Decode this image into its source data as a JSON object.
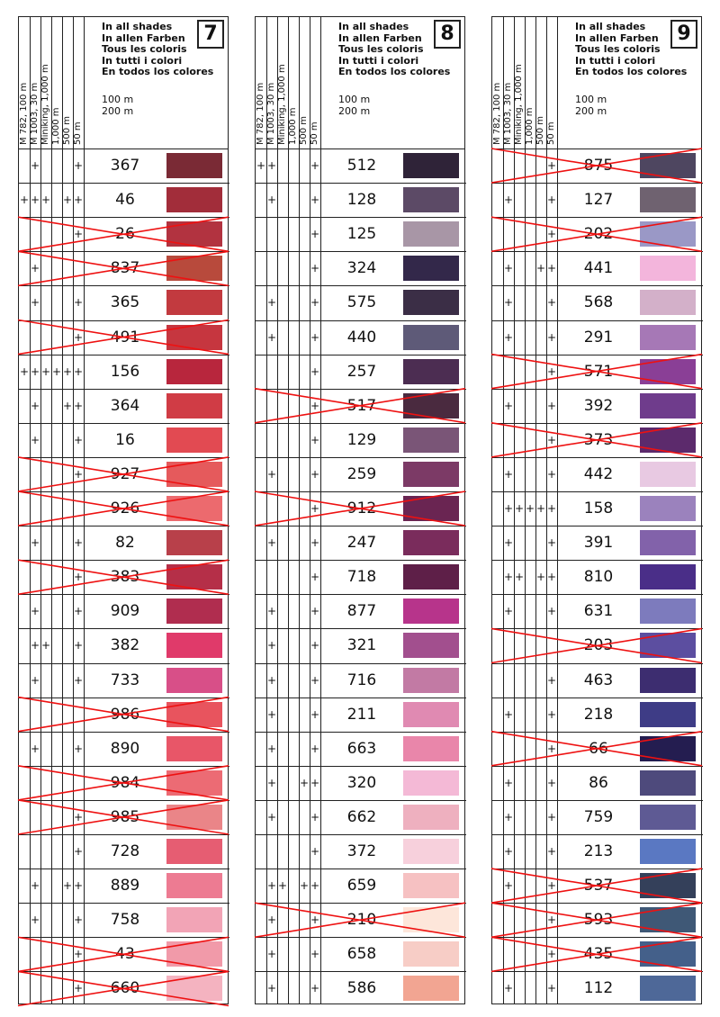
{
  "header": {
    "columns": [
      "M 782, 100 m",
      "M 1003, 30 m",
      "Miniking, 1,000 m",
      "1,000 m",
      "500 m",
      "50 m"
    ],
    "titles": [
      "In all shades",
      "In allen Farben",
      "Tous les coloris",
      "In tutti i colori",
      "En todos los colores"
    ],
    "lengths": [
      "100 m",
      "200 m"
    ]
  },
  "colors": {
    "cross": "#e11",
    "line": "#222"
  },
  "panels": [
    {
      "number": "7",
      "rows": [
        {
          "code": "367",
          "marks": [
            0,
            1,
            0,
            0,
            0,
            1
          ],
          "crossed": false,
          "color": "#7a2a35"
        },
        {
          "code": "46",
          "marks": [
            1,
            1,
            1,
            0,
            1,
            1
          ],
          "crossed": false,
          "color": "#a22d3a"
        },
        {
          "code": "26",
          "marks": [
            0,
            0,
            0,
            0,
            0,
            1
          ],
          "crossed": true,
          "color": "#b23340"
        },
        {
          "code": "837",
          "marks": [
            0,
            1,
            0,
            0,
            0,
            0
          ],
          "crossed": true,
          "color": "#b84a3c"
        },
        {
          "code": "365",
          "marks": [
            0,
            1,
            0,
            0,
            0,
            1
          ],
          "crossed": false,
          "color": "#c23a3f"
        },
        {
          "code": "491",
          "marks": [
            0,
            0,
            0,
            0,
            0,
            1
          ],
          "crossed": true,
          "color": "#c6363f"
        },
        {
          "code": "156",
          "marks": [
            1,
            1,
            1,
            1,
            1,
            1
          ],
          "crossed": false,
          "color": "#b8263d"
        },
        {
          "code": "364",
          "marks": [
            0,
            1,
            0,
            0,
            1,
            1
          ],
          "crossed": false,
          "color": "#d03c45"
        },
        {
          "code": "16",
          "marks": [
            0,
            1,
            0,
            0,
            0,
            1
          ],
          "crossed": false,
          "color": "#e24a52"
        },
        {
          "code": "927",
          "marks": [
            0,
            0,
            0,
            0,
            0,
            1
          ],
          "crossed": true,
          "color": "#e55a5c"
        },
        {
          "code": "926",
          "marks": [
            0,
            0,
            0,
            0,
            0,
            0
          ],
          "crossed": true,
          "color": "#ec6a6e"
        },
        {
          "code": "82",
          "marks": [
            0,
            1,
            0,
            0,
            0,
            1
          ],
          "crossed": false,
          "color": "#b8404a"
        },
        {
          "code": "383",
          "marks": [
            0,
            0,
            0,
            0,
            0,
            1
          ],
          "crossed": true,
          "color": "#b52f48"
        },
        {
          "code": "909",
          "marks": [
            0,
            1,
            0,
            0,
            0,
            1
          ],
          "crossed": false,
          "color": "#b02d4f"
        },
        {
          "code": "382",
          "marks": [
            0,
            1,
            1,
            0,
            0,
            1
          ],
          "crossed": false,
          "color": "#e03a6a"
        },
        {
          "code": "733",
          "marks": [
            0,
            1,
            0,
            0,
            0,
            1
          ],
          "crossed": false,
          "color": "#d84f88"
        },
        {
          "code": "986",
          "marks": [
            0,
            0,
            0,
            0,
            0,
            0
          ],
          "crossed": true,
          "color": "#e8545e"
        },
        {
          "code": "890",
          "marks": [
            0,
            1,
            0,
            0,
            0,
            1
          ],
          "crossed": false,
          "color": "#e85668"
        },
        {
          "code": "984",
          "marks": [
            0,
            0,
            0,
            0,
            0,
            0
          ],
          "crossed": true,
          "color": "#ec6b74"
        },
        {
          "code": "985",
          "marks": [
            0,
            0,
            0,
            0,
            0,
            1
          ],
          "crossed": true,
          "color": "#ea8588"
        },
        {
          "code": "728",
          "marks": [
            0,
            0,
            0,
            0,
            0,
            1
          ],
          "crossed": false,
          "color": "#e65d72"
        },
        {
          "code": "889",
          "marks": [
            0,
            1,
            0,
            0,
            1,
            1
          ],
          "crossed": false,
          "color": "#ed7b92"
        },
        {
          "code": "758",
          "marks": [
            0,
            1,
            0,
            0,
            0,
            1
          ],
          "crossed": false,
          "color": "#f2a4b6"
        },
        {
          "code": "43",
          "marks": [
            0,
            0,
            0,
            0,
            0,
            1
          ],
          "crossed": true,
          "color": "#f19aa9"
        },
        {
          "code": "660",
          "marks": [
            0,
            0,
            0,
            0,
            0,
            1
          ],
          "crossed": true,
          "color": "#f4b3c0"
        }
      ]
    },
    {
      "number": "8",
      "rows": [
        {
          "code": "512",
          "marks": [
            1,
            1,
            0,
            0,
            0,
            1
          ],
          "crossed": false,
          "color": "#2f2338"
        },
        {
          "code": "128",
          "marks": [
            0,
            1,
            0,
            0,
            0,
            1
          ],
          "crossed": false,
          "color": "#5c4a66"
        },
        {
          "code": "125",
          "marks": [
            0,
            0,
            0,
            0,
            0,
            1
          ],
          "crossed": false,
          "color": "#a896a6"
        },
        {
          "code": "324",
          "marks": [
            0,
            0,
            0,
            0,
            0,
            1
          ],
          "crossed": false,
          "color": "#33284a"
        },
        {
          "code": "575",
          "marks": [
            0,
            1,
            0,
            0,
            0,
            1
          ],
          "crossed": false,
          "color": "#3b2e46"
        },
        {
          "code": "440",
          "marks": [
            0,
            1,
            0,
            0,
            0,
            1
          ],
          "crossed": false,
          "color": "#5e5a78"
        },
        {
          "code": "257",
          "marks": [
            0,
            0,
            0,
            0,
            0,
            1
          ],
          "crossed": false,
          "color": "#4c2d52"
        },
        {
          "code": "517",
          "marks": [
            0,
            0,
            0,
            0,
            0,
            1
          ],
          "crossed": true,
          "color": "#4a2a3f"
        },
        {
          "code": "129",
          "marks": [
            0,
            0,
            0,
            0,
            0,
            1
          ],
          "crossed": false,
          "color": "#7a5577"
        },
        {
          "code": "259",
          "marks": [
            0,
            1,
            0,
            0,
            0,
            1
          ],
          "crossed": false,
          "color": "#7c3a66"
        },
        {
          "code": "912",
          "marks": [
            0,
            0,
            0,
            0,
            0,
            1
          ],
          "crossed": true,
          "color": "#6a2552"
        },
        {
          "code": "247",
          "marks": [
            0,
            1,
            0,
            0,
            0,
            1
          ],
          "crossed": false,
          "color": "#7a2c5c"
        },
        {
          "code": "718",
          "marks": [
            0,
            0,
            0,
            0,
            0,
            1
          ],
          "crossed": false,
          "color": "#5e1f48"
        },
        {
          "code": "877",
          "marks": [
            0,
            1,
            0,
            0,
            0,
            1
          ],
          "crossed": false,
          "color": "#b7348b"
        },
        {
          "code": "321",
          "marks": [
            0,
            1,
            0,
            0,
            0,
            1
          ],
          "crossed": false,
          "color": "#a24f8e"
        },
        {
          "code": "716",
          "marks": [
            0,
            1,
            0,
            0,
            0,
            1
          ],
          "crossed": false,
          "color": "#c27aa4"
        },
        {
          "code": "211",
          "marks": [
            0,
            1,
            0,
            0,
            0,
            1
          ],
          "crossed": false,
          "color": "#e08ab2"
        },
        {
          "code": "663",
          "marks": [
            0,
            1,
            0,
            0,
            0,
            1
          ],
          "crossed": false,
          "color": "#e986aa"
        },
        {
          "code": "320",
          "marks": [
            0,
            1,
            0,
            0,
            1,
            1
          ],
          "crossed": false,
          "color": "#f4b9d6"
        },
        {
          "code": "662",
          "marks": [
            0,
            1,
            0,
            0,
            0,
            1
          ],
          "crossed": false,
          "color": "#eeb0bf"
        },
        {
          "code": "372",
          "marks": [
            0,
            0,
            0,
            0,
            0,
            1
          ],
          "crossed": false,
          "color": "#f7d0dc"
        },
        {
          "code": "659",
          "marks": [
            0,
            1,
            1,
            0,
            1,
            1
          ],
          "crossed": false,
          "color": "#f6c1c2"
        },
        {
          "code": "210",
          "marks": [
            0,
            1,
            0,
            0,
            0,
            1
          ],
          "crossed": true,
          "color": "#fde6da"
        },
        {
          "code": "658",
          "marks": [
            0,
            1,
            0,
            0,
            0,
            1
          ],
          "crossed": false,
          "color": "#f7cdc6"
        },
        {
          "code": "586",
          "marks": [
            0,
            1,
            0,
            0,
            0,
            1
          ],
          "crossed": false,
          "color": "#f2a592"
        }
      ]
    },
    {
      "number": "9",
      "rows": [
        {
          "code": "875",
          "marks": [
            0,
            0,
            0,
            0,
            0,
            1
          ],
          "crossed": true,
          "color": "#4e4660"
        },
        {
          "code": "127",
          "marks": [
            0,
            1,
            0,
            0,
            0,
            1
          ],
          "crossed": false,
          "color": "#6f6270"
        },
        {
          "code": "202",
          "marks": [
            0,
            0,
            0,
            0,
            0,
            1
          ],
          "crossed": true,
          "color": "#9a98c6"
        },
        {
          "code": "441",
          "marks": [
            0,
            1,
            0,
            0,
            1,
            1
          ],
          "crossed": false,
          "color": "#f3b5dc"
        },
        {
          "code": "568",
          "marks": [
            0,
            1,
            0,
            0,
            0,
            1
          ],
          "crossed": false,
          "color": "#d3b0c9"
        },
        {
          "code": "291",
          "marks": [
            0,
            1,
            0,
            0,
            0,
            1
          ],
          "crossed": false,
          "color": "#a678b6"
        },
        {
          "code": "571",
          "marks": [
            0,
            0,
            0,
            0,
            0,
            1
          ],
          "crossed": true,
          "color": "#8a3f96"
        },
        {
          "code": "392",
          "marks": [
            0,
            1,
            0,
            0,
            0,
            1
          ],
          "crossed": false,
          "color": "#6f3c8c"
        },
        {
          "code": "373",
          "marks": [
            0,
            0,
            0,
            0,
            0,
            1
          ],
          "crossed": true,
          "color": "#5c2a6c"
        },
        {
          "code": "442",
          "marks": [
            0,
            1,
            0,
            0,
            0,
            1
          ],
          "crossed": false,
          "color": "#e8c9e2"
        },
        {
          "code": "158",
          "marks": [
            0,
            1,
            1,
            1,
            1,
            1
          ],
          "crossed": false,
          "color": "#9b82bd"
        },
        {
          "code": "391",
          "marks": [
            0,
            1,
            0,
            0,
            0,
            1
          ],
          "crossed": false,
          "color": "#8262aa"
        },
        {
          "code": "810",
          "marks": [
            0,
            1,
            1,
            0,
            1,
            1
          ],
          "crossed": false,
          "color": "#4a2e88"
        },
        {
          "code": "631",
          "marks": [
            0,
            1,
            0,
            0,
            0,
            1
          ],
          "crossed": false,
          "color": "#7d7bbd"
        },
        {
          "code": "203",
          "marks": [
            0,
            0,
            0,
            0,
            0,
            0
          ],
          "crossed": true,
          "color": "#5c4ea0"
        },
        {
          "code": "463",
          "marks": [
            0,
            0,
            0,
            0,
            0,
            1
          ],
          "crossed": false,
          "color": "#3d2d70"
        },
        {
          "code": "218",
          "marks": [
            0,
            1,
            0,
            0,
            0,
            1
          ],
          "crossed": false,
          "color": "#3e3c86"
        },
        {
          "code": "66",
          "marks": [
            0,
            0,
            0,
            0,
            0,
            1
          ],
          "crossed": true,
          "color": "#241d50"
        },
        {
          "code": "86",
          "marks": [
            0,
            1,
            0,
            0,
            0,
            1
          ],
          "crossed": false,
          "color": "#4e4a7c"
        },
        {
          "code": "759",
          "marks": [
            0,
            1,
            0,
            0,
            0,
            1
          ],
          "crossed": false,
          "color": "#5e5a94"
        },
        {
          "code": "213",
          "marks": [
            0,
            1,
            0,
            0,
            0,
            1
          ],
          "crossed": false,
          "color": "#5a78c2"
        },
        {
          "code": "537",
          "marks": [
            0,
            1,
            0,
            0,
            0,
            1
          ],
          "crossed": true,
          "color": "#34405a"
        },
        {
          "code": "593",
          "marks": [
            0,
            0,
            0,
            0,
            0,
            1
          ],
          "crossed": true,
          "color": "#3f5876"
        },
        {
          "code": "435",
          "marks": [
            0,
            0,
            0,
            0,
            0,
            1
          ],
          "crossed": true,
          "color": "#44608a"
        },
        {
          "code": "112",
          "marks": [
            0,
            1,
            0,
            0,
            0,
            1
          ],
          "crossed": false,
          "color": "#4e6898"
        }
      ]
    }
  ]
}
